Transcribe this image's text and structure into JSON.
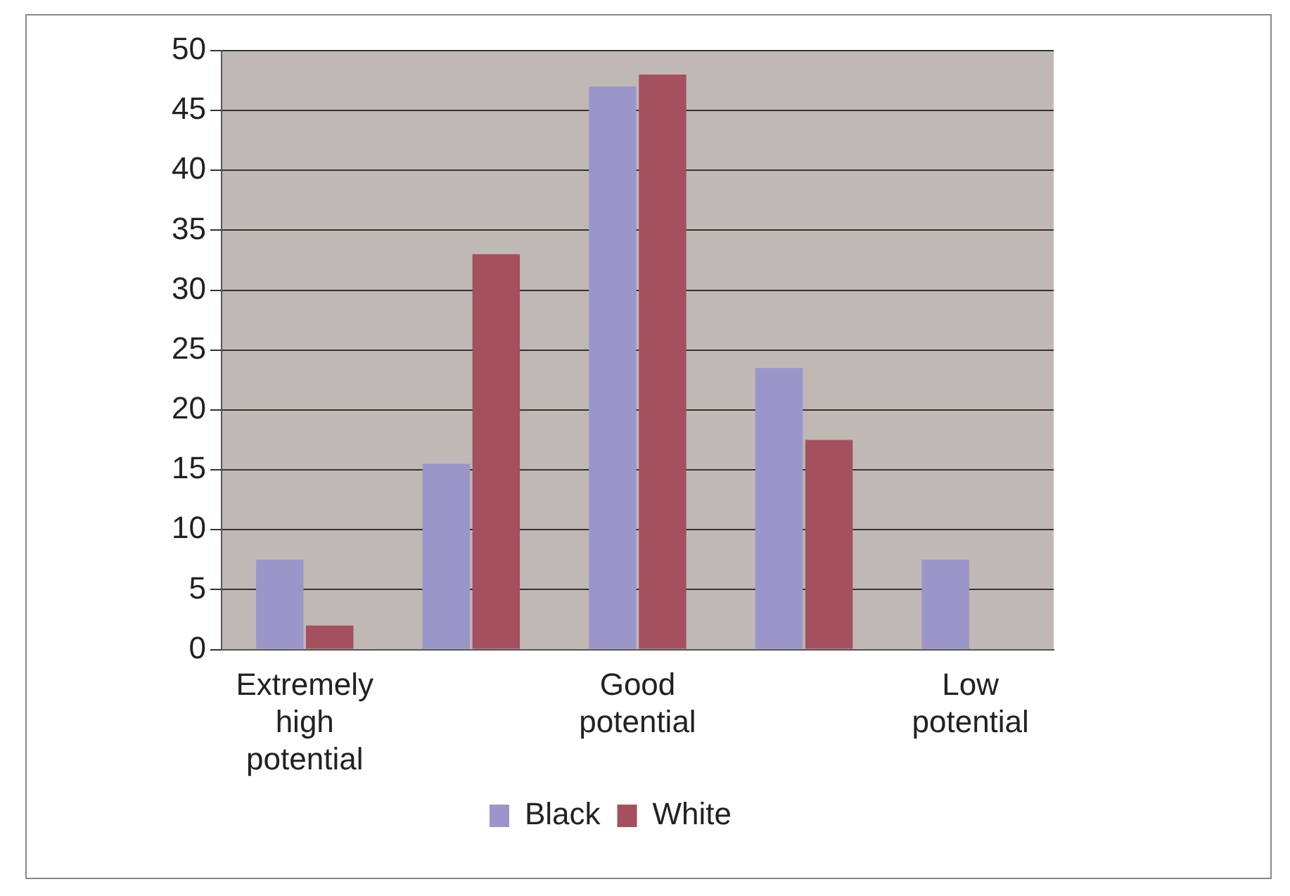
{
  "chart_data": {
    "type": "bar",
    "categories": [
      "Extremely high potential",
      null,
      "Good potential",
      null,
      "Low potential"
    ],
    "series": [
      {
        "name": "Black",
        "color": "#9b96c9",
        "values": [
          7.5,
          15.5,
          47,
          23.5,
          7.5
        ]
      },
      {
        "name": "White",
        "color": "#a5505f",
        "values": [
          2,
          33,
          48,
          17.5,
          0
        ]
      }
    ],
    "ylim": [
      0,
      50
    ],
    "yticks": [
      0,
      5,
      10,
      15,
      20,
      25,
      30,
      35,
      40,
      45,
      50
    ],
    "grid": "y",
    "legend": "bottom"
  }
}
